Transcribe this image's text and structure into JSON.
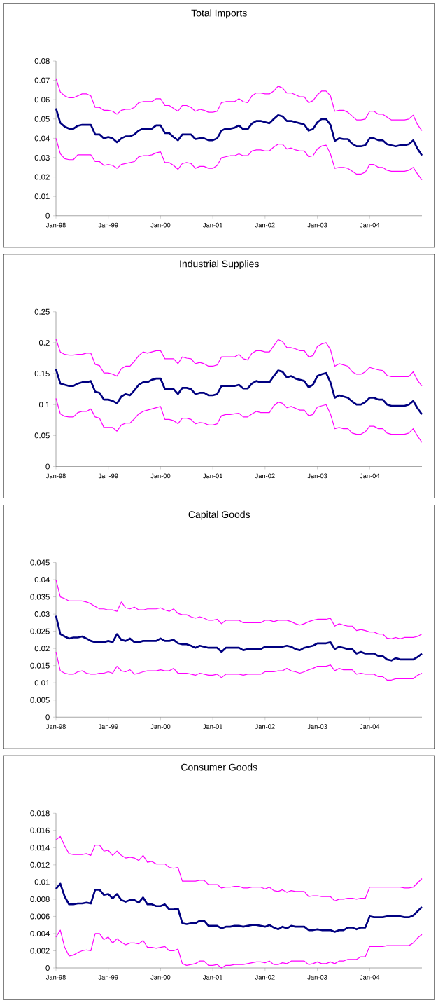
{
  "chart_data": [
    {
      "type": "line",
      "title": "Total Imports",
      "categories": [
        "Jan-98",
        null,
        null,
        null,
        null,
        null,
        null,
        null,
        null,
        null,
        null,
        null,
        "Jan-99",
        null,
        null,
        null,
        null,
        null,
        null,
        null,
        null,
        null,
        null,
        null,
        "Jan-00",
        null,
        null,
        null,
        null,
        null,
        null,
        null,
        null,
        null,
        null,
        null,
        "Jan-01",
        null,
        null,
        null,
        null,
        null,
        null,
        null,
        null,
        null,
        null,
        null,
        "Jan-02",
        null,
        null,
        null,
        null,
        null,
        null,
        null,
        null,
        null,
        null,
        null,
        "Jan-03",
        null,
        null,
        null,
        null,
        null,
        null,
        null,
        null,
        null,
        null,
        null,
        "Jan-04",
        null,
        null,
        null,
        null,
        null,
        null,
        null,
        null,
        null,
        null,
        null,
        null
      ],
      "ylim": [
        0,
        0.08
      ],
      "yticks": [
        0,
        0.01,
        0.02,
        0.03,
        0.04,
        0.05,
        0.06,
        0.07,
        0.08
      ],
      "series": [
        {
          "color": "#000080",
          "values": [
            0.0555,
            0.048,
            0.046,
            0.045,
            0.045,
            0.0465,
            0.047,
            0.047,
            0.047,
            0.042,
            0.042,
            0.04,
            0.0407,
            0.04,
            0.038,
            0.04,
            0.041,
            0.041,
            0.042,
            0.044,
            0.045,
            0.045,
            0.045,
            0.0467,
            0.0467,
            0.0427,
            0.0427,
            0.0406,
            0.039,
            0.042,
            0.042,
            0.042,
            0.0396,
            0.04,
            0.04,
            0.039,
            0.039,
            0.04,
            0.044,
            0.045,
            0.045,
            0.0455,
            0.0467,
            0.0447,
            0.0447,
            0.0477,
            0.049,
            0.049,
            0.0484,
            0.0478,
            0.05,
            0.052,
            0.0514,
            0.049,
            0.049,
            0.0484,
            0.0478,
            0.0471,
            0.044,
            0.0448,
            0.0483,
            0.05,
            0.05,
            0.047,
            0.0387,
            0.04,
            0.0396,
            0.0396,
            0.0372,
            0.0359,
            0.0359,
            0.0364,
            0.04,
            0.04,
            0.039,
            0.039,
            0.037,
            0.0364,
            0.0359,
            0.0364,
            0.0364,
            0.037,
            0.039,
            0.0346,
            0.0312
          ]
        },
        {
          "color": "#ff00ff",
          "values": [
            0.071,
            0.064,
            0.062,
            0.061,
            0.061,
            0.062,
            0.063,
            0.063,
            0.062,
            0.056,
            0.056,
            0.0545,
            0.0545,
            0.054,
            0.0525,
            0.0545,
            0.055,
            0.055,
            0.056,
            0.0585,
            0.059,
            0.059,
            0.059,
            0.0605,
            0.0605,
            0.057,
            0.057,
            0.0555,
            0.054,
            0.057,
            0.057,
            0.056,
            0.054,
            0.055,
            0.0545,
            0.0535,
            0.0535,
            0.054,
            0.0585,
            0.059,
            0.059,
            0.059,
            0.0605,
            0.059,
            0.0585,
            0.062,
            0.0635,
            0.0635,
            0.063,
            0.063,
            0.0645,
            0.067,
            0.066,
            0.0635,
            0.0635,
            0.0625,
            0.0615,
            0.0615,
            0.0585,
            0.0595,
            0.0625,
            0.0645,
            0.0645,
            0.062,
            0.054,
            0.0545,
            0.0545,
            0.0535,
            0.0515,
            0.0495,
            0.0495,
            0.05,
            0.054,
            0.054,
            0.0525,
            0.0525,
            0.051,
            0.0495,
            0.0495,
            0.0495,
            0.0495,
            0.05,
            0.052,
            0.047,
            0.044
          ]
        },
        {
          "color": "#ff00ff",
          "values": [
            0.04,
            0.032,
            0.0295,
            0.029,
            0.029,
            0.0315,
            0.0315,
            0.0315,
            0.0315,
            0.028,
            0.028,
            0.026,
            0.0265,
            0.026,
            0.0245,
            0.0265,
            0.027,
            0.0275,
            0.028,
            0.0305,
            0.031,
            0.031,
            0.0315,
            0.0325,
            0.033,
            0.0275,
            0.0275,
            0.026,
            0.024,
            0.027,
            0.0275,
            0.027,
            0.0245,
            0.0255,
            0.0255,
            0.0245,
            0.0245,
            0.026,
            0.03,
            0.0305,
            0.031,
            0.031,
            0.032,
            0.031,
            0.031,
            0.0335,
            0.034,
            0.034,
            0.0335,
            0.0335,
            0.0355,
            0.037,
            0.037,
            0.0345,
            0.035,
            0.034,
            0.0335,
            0.0335,
            0.0305,
            0.031,
            0.0345,
            0.036,
            0.0365,
            0.032,
            0.0245,
            0.025,
            0.025,
            0.0245,
            0.023,
            0.0215,
            0.0215,
            0.0225,
            0.0265,
            0.0265,
            0.025,
            0.025,
            0.0235,
            0.023,
            0.023,
            0.023,
            0.023,
            0.0235,
            0.025,
            0.0215,
            0.0185
          ]
        }
      ]
    },
    {
      "type": "line",
      "title": "Industrial Supplies",
      "categories": [
        "Jan-98",
        null,
        null,
        null,
        null,
        null,
        null,
        null,
        null,
        null,
        null,
        null,
        "Jan-99",
        null,
        null,
        null,
        null,
        null,
        null,
        null,
        null,
        null,
        null,
        null,
        "Jan-00",
        null,
        null,
        null,
        null,
        null,
        null,
        null,
        null,
        null,
        null,
        null,
        "Jan-01",
        null,
        null,
        null,
        null,
        null,
        null,
        null,
        null,
        null,
        null,
        null,
        "Jan-02",
        null,
        null,
        null,
        null,
        null,
        null,
        null,
        null,
        null,
        null,
        null,
        "Jan-03",
        null,
        null,
        null,
        null,
        null,
        null,
        null,
        null,
        null,
        null,
        null,
        "Jan-04",
        null,
        null,
        null,
        null,
        null,
        null,
        null,
        null,
        null,
        null,
        null,
        null
      ],
      "ylim": [
        0,
        0.25
      ],
      "yticks": [
        0,
        0.05,
        0.1,
        0.15,
        0.2,
        0.25
      ],
      "series": [
        {
          "color": "#000080",
          "values": [
            0.157,
            0.134,
            0.132,
            0.13,
            0.13,
            0.134,
            0.136,
            0.136,
            0.138,
            0.121,
            0.119,
            0.108,
            0.108,
            0.106,
            0.102,
            0.113,
            0.117,
            0.115,
            0.123,
            0.132,
            0.136,
            0.136,
            0.14,
            0.142,
            0.142,
            0.125,
            0.125,
            0.125,
            0.117,
            0.127,
            0.127,
            0.125,
            0.117,
            0.119,
            0.119,
            0.115,
            0.115,
            0.117,
            0.13,
            0.13,
            0.13,
            0.13,
            0.132,
            0.126,
            0.126,
            0.134,
            0.138,
            0.136,
            0.136,
            0.136,
            0.146,
            0.155,
            0.153,
            0.144,
            0.146,
            0.142,
            0.14,
            0.138,
            0.128,
            0.132,
            0.146,
            0.149,
            0.151,
            0.136,
            0.111,
            0.115,
            0.113,
            0.111,
            0.105,
            0.1,
            0.1,
            0.104,
            0.111,
            0.111,
            0.108,
            0.108,
            0.1,
            0.098,
            0.098,
            0.098,
            0.098,
            0.1,
            0.106,
            0.094,
            0.084
          ]
        },
        {
          "color": "#ff00ff",
          "values": [
            0.206,
            0.185,
            0.181,
            0.18,
            0.18,
            0.181,
            0.181,
            0.183,
            0.183,
            0.165,
            0.163,
            0.151,
            0.151,
            0.149,
            0.146,
            0.158,
            0.162,
            0.162,
            0.17,
            0.179,
            0.185,
            0.183,
            0.185,
            0.187,
            0.187,
            0.174,
            0.174,
            0.174,
            0.166,
            0.177,
            0.175,
            0.174,
            0.166,
            0.168,
            0.166,
            0.162,
            0.162,
            0.164,
            0.177,
            0.177,
            0.177,
            0.177,
            0.181,
            0.174,
            0.172,
            0.183,
            0.187,
            0.187,
            0.185,
            0.185,
            0.195,
            0.205,
            0.202,
            0.192,
            0.192,
            0.19,
            0.187,
            0.187,
            0.177,
            0.179,
            0.194,
            0.198,
            0.2,
            0.189,
            0.162,
            0.166,
            0.164,
            0.162,
            0.153,
            0.149,
            0.149,
            0.153,
            0.16,
            0.158,
            0.156,
            0.155,
            0.147,
            0.145,
            0.145,
            0.145,
            0.145,
            0.145,
            0.153,
            0.139,
            0.13
          ]
        },
        {
          "color": "#ff00ff",
          "values": [
            0.11,
            0.085,
            0.081,
            0.08,
            0.08,
            0.087,
            0.089,
            0.089,
            0.093,
            0.08,
            0.078,
            0.063,
            0.063,
            0.063,
            0.057,
            0.067,
            0.07,
            0.07,
            0.077,
            0.085,
            0.089,
            0.091,
            0.093,
            0.095,
            0.097,
            0.076,
            0.076,
            0.074,
            0.069,
            0.078,
            0.078,
            0.076,
            0.069,
            0.071,
            0.07,
            0.067,
            0.067,
            0.069,
            0.082,
            0.084,
            0.084,
            0.085,
            0.086,
            0.08,
            0.08,
            0.085,
            0.089,
            0.087,
            0.087,
            0.087,
            0.098,
            0.104,
            0.102,
            0.095,
            0.097,
            0.094,
            0.091,
            0.091,
            0.082,
            0.084,
            0.096,
            0.098,
            0.1,
            0.085,
            0.061,
            0.063,
            0.061,
            0.061,
            0.054,
            0.052,
            0.052,
            0.056,
            0.065,
            0.065,
            0.061,
            0.061,
            0.054,
            0.052,
            0.052,
            0.052,
            0.052,
            0.054,
            0.061,
            0.049,
            0.039
          ]
        }
      ]
    },
    {
      "type": "line",
      "title": "Capital Goods",
      "categories": [
        "Jan-98",
        null,
        null,
        null,
        null,
        null,
        null,
        null,
        null,
        null,
        null,
        null,
        "Jan-99",
        null,
        null,
        null,
        null,
        null,
        null,
        null,
        null,
        null,
        null,
        null,
        "Jan-00",
        null,
        null,
        null,
        null,
        null,
        null,
        null,
        null,
        null,
        null,
        null,
        "Jan-01",
        null,
        null,
        null,
        null,
        null,
        null,
        null,
        null,
        null,
        null,
        null,
        "Jan-02",
        null,
        null,
        null,
        null,
        null,
        null,
        null,
        null,
        null,
        null,
        null,
        "Jan-03",
        null,
        null,
        null,
        null,
        null,
        null,
        null,
        null,
        null,
        null,
        null,
        "Jan-04",
        null,
        null,
        null,
        null,
        null,
        null,
        null,
        null,
        null,
        null,
        null,
        null
      ],
      "ylim": [
        0,
        0.045
      ],
      "yticks": [
        0,
        0.005,
        0.01,
        0.015,
        0.02,
        0.025,
        0.03,
        0.035,
        0.04,
        0.045
      ],
      "series": [
        {
          "color": "#000080",
          "values": [
            0.0295,
            0.0242,
            0.0235,
            0.0229,
            0.0232,
            0.0232,
            0.0235,
            0.0229,
            0.0222,
            0.0218,
            0.0218,
            0.0218,
            0.0222,
            0.0218,
            0.0242,
            0.0225,
            0.0222,
            0.0229,
            0.0218,
            0.0218,
            0.0222,
            0.0222,
            0.0222,
            0.0222,
            0.0229,
            0.0222,
            0.0222,
            0.0225,
            0.0215,
            0.0212,
            0.0212,
            0.0208,
            0.0202,
            0.0208,
            0.0205,
            0.0202,
            0.0202,
            0.0202,
            0.019,
            0.0202,
            0.0202,
            0.0202,
            0.0202,
            0.0195,
            0.0198,
            0.0198,
            0.0198,
            0.0198,
            0.0205,
            0.0205,
            0.0205,
            0.0205,
            0.0205,
            0.0208,
            0.0205,
            0.0198,
            0.0195,
            0.0202,
            0.0205,
            0.0208,
            0.0215,
            0.0215,
            0.0215,
            0.0218,
            0.0198,
            0.0205,
            0.0202,
            0.0198,
            0.0198,
            0.0185,
            0.019,
            0.0185,
            0.0185,
            0.0185,
            0.0178,
            0.0178,
            0.0168,
            0.0165,
            0.0172,
            0.0168,
            0.0168,
            0.0168,
            0.0168,
            0.0175,
            0.0185
          ]
        },
        {
          "color": "#ff00ff",
          "values": [
            0.04,
            0.035,
            0.0345,
            0.0338,
            0.0338,
            0.0338,
            0.0338,
            0.0335,
            0.033,
            0.0322,
            0.0315,
            0.0315,
            0.0312,
            0.0312,
            0.0308,
            0.0335,
            0.0318,
            0.0315,
            0.032,
            0.0312,
            0.0312,
            0.0315,
            0.0315,
            0.0315,
            0.0318,
            0.0312,
            0.0308,
            0.0315,
            0.0302,
            0.0298,
            0.0298,
            0.0292,
            0.0288,
            0.0292,
            0.0288,
            0.0282,
            0.0282,
            0.0285,
            0.0272,
            0.0282,
            0.0282,
            0.0282,
            0.0282,
            0.0275,
            0.0275,
            0.0275,
            0.0275,
            0.0275,
            0.0282,
            0.0282,
            0.0278,
            0.0282,
            0.0282,
            0.0282,
            0.0278,
            0.0272,
            0.0268,
            0.0272,
            0.0278,
            0.0282,
            0.0285,
            0.0285,
            0.0285,
            0.0288,
            0.0265,
            0.0272,
            0.0268,
            0.0265,
            0.0265,
            0.0252,
            0.0255,
            0.0252,
            0.0248,
            0.0248,
            0.0242,
            0.0242,
            0.023,
            0.0228,
            0.0232,
            0.0228,
            0.0232,
            0.0232,
            0.0232,
            0.0235,
            0.0242
          ]
        },
        {
          "color": "#ff00ff",
          "values": [
            0.019,
            0.0135,
            0.0128,
            0.0125,
            0.0125,
            0.0132,
            0.0135,
            0.0128,
            0.0125,
            0.0125,
            0.0128,
            0.0128,
            0.0132,
            0.0128,
            0.0148,
            0.0135,
            0.0132,
            0.0138,
            0.0125,
            0.0128,
            0.0132,
            0.0135,
            0.0135,
            0.0135,
            0.0138,
            0.0135,
            0.0135,
            0.0142,
            0.0128,
            0.0128,
            0.0128,
            0.0125,
            0.0122,
            0.0128,
            0.0125,
            0.0122,
            0.0122,
            0.0125,
            0.0115,
            0.0125,
            0.0125,
            0.0125,
            0.0125,
            0.0122,
            0.0125,
            0.0125,
            0.0125,
            0.0125,
            0.0132,
            0.0132,
            0.0132,
            0.0135,
            0.0135,
            0.0142,
            0.0135,
            0.0132,
            0.0128,
            0.0132,
            0.0138,
            0.0142,
            0.0148,
            0.0148,
            0.0148,
            0.0152,
            0.0135,
            0.0142,
            0.0138,
            0.0138,
            0.0138,
            0.0125,
            0.0128,
            0.0125,
            0.0125,
            0.0125,
            0.0118,
            0.0118,
            0.0108,
            0.0108,
            0.0112,
            0.0112,
            0.0112,
            0.0112,
            0.0112,
            0.0122,
            0.0128
          ]
        }
      ]
    },
    {
      "type": "line",
      "title": "Consumer Goods",
      "categories": [
        "Jan-98",
        null,
        null,
        null,
        null,
        null,
        null,
        null,
        null,
        null,
        null,
        null,
        "Jan-99",
        null,
        null,
        null,
        null,
        null,
        null,
        null,
        null,
        null,
        null,
        null,
        "Jan-00",
        null,
        null,
        null,
        null,
        null,
        null,
        null,
        null,
        null,
        null,
        null,
        "Jan-01",
        null,
        null,
        null,
        null,
        null,
        null,
        null,
        null,
        null,
        null,
        null,
        "Jan-02",
        null,
        null,
        null,
        null,
        null,
        null,
        null,
        null,
        null,
        null,
        null,
        "Jan-03",
        null,
        null,
        null,
        null,
        null,
        null,
        null,
        null,
        null,
        null,
        null,
        "Jan-04",
        null,
        null,
        null,
        null,
        null,
        null,
        null,
        null,
        null,
        null,
        null,
        null
      ],
      "ylim": [
        0,
        0.018
      ],
      "yticks": [
        0,
        0.002,
        0.004,
        0.006,
        0.008,
        0.01,
        0.012,
        0.014,
        0.016,
        0.018
      ],
      "series": [
        {
          "color": "#000080",
          "values": [
            0.0092,
            0.0098,
            0.0083,
            0.0074,
            0.0074,
            0.0075,
            0.0075,
            0.0076,
            0.0075,
            0.0091,
            0.0091,
            0.0085,
            0.0086,
            0.0081,
            0.0086,
            0.0079,
            0.0077,
            0.0079,
            0.0079,
            0.0076,
            0.0082,
            0.0074,
            0.0074,
            0.0072,
            0.0072,
            0.0074,
            0.0068,
            0.0068,
            0.0069,
            0.0052,
            0.0051,
            0.0052,
            0.0052,
            0.0055,
            0.0055,
            0.0049,
            0.0049,
            0.0049,
            0.0046,
            0.0048,
            0.0048,
            0.0049,
            0.0049,
            0.0048,
            0.0049,
            0.005,
            0.005,
            0.0049,
            0.0048,
            0.005,
            0.0047,
            0.0045,
            0.0048,
            0.0046,
            0.0049,
            0.0048,
            0.0048,
            0.0048,
            0.0044,
            0.0044,
            0.0045,
            0.0044,
            0.0044,
            0.0044,
            0.0042,
            0.0044,
            0.0044,
            0.0047,
            0.0047,
            0.0045,
            0.0047,
            0.0047,
            0.006,
            0.0059,
            0.0059,
            0.0059,
            0.006,
            0.006,
            0.006,
            0.006,
            0.0059,
            0.0059,
            0.0061,
            0.0066,
            0.0071
          ]
        },
        {
          "color": "#ff00ff",
          "values": [
            0.0149,
            0.0153,
            0.0142,
            0.0133,
            0.0132,
            0.0132,
            0.0132,
            0.0133,
            0.0131,
            0.0143,
            0.0143,
            0.0136,
            0.0137,
            0.0131,
            0.0136,
            0.0131,
            0.0128,
            0.0129,
            0.0128,
            0.0125,
            0.0131,
            0.0123,
            0.0124,
            0.0121,
            0.0121,
            0.0121,
            0.0117,
            0.0116,
            0.0117,
            0.0101,
            0.0101,
            0.0101,
            0.0101,
            0.0102,
            0.0102,
            0.0097,
            0.0097,
            0.0097,
            0.0093,
            0.0094,
            0.0094,
            0.0095,
            0.0095,
            0.0093,
            0.0093,
            0.0094,
            0.0094,
            0.0094,
            0.0092,
            0.0094,
            0.009,
            0.0089,
            0.0091,
            0.0088,
            0.009,
            0.0089,
            0.0089,
            0.0089,
            0.0083,
            0.0084,
            0.0084,
            0.0083,
            0.0083,
            0.0083,
            0.0078,
            0.008,
            0.008,
            0.0081,
            0.0081,
            0.008,
            0.0081,
            0.0081,
            0.0094,
            0.0094,
            0.0094,
            0.0094,
            0.0094,
            0.0094,
            0.0094,
            0.0094,
            0.0093,
            0.0093,
            0.0094,
            0.0099,
            0.0104
          ]
        },
        {
          "color": "#ff00ff",
          "values": [
            0.0036,
            0.0044,
            0.0024,
            0.0014,
            0.0015,
            0.0018,
            0.002,
            0.0021,
            0.002,
            0.004,
            0.004,
            0.0033,
            0.0036,
            0.0029,
            0.0034,
            0.003,
            0.0027,
            0.0029,
            0.0029,
            0.0028,
            0.0032,
            0.0024,
            0.0024,
            0.0023,
            0.0024,
            0.0025,
            0.002,
            0.002,
            0.0022,
            0.0005,
            0.0003,
            0.0004,
            0.0005,
            0.0008,
            0.0008,
            0.0003,
            0.0003,
            0.0004,
            0.0,
            0.0003,
            0.0003,
            0.0004,
            0.0004,
            0.0004,
            0.0005,
            0.0006,
            0.0007,
            0.0007,
            0.0006,
            0.0008,
            0.0004,
            0.0004,
            0.0006,
            0.0005,
            0.0008,
            0.0008,
            0.0008,
            0.0008,
            0.0004,
            0.0005,
            0.0007,
            0.0005,
            0.0005,
            0.0007,
            0.0005,
            0.0008,
            0.0008,
            0.001,
            0.001,
            0.001,
            0.0013,
            0.0013,
            0.0025,
            0.0025,
            0.0025,
            0.0025,
            0.0026,
            0.0026,
            0.0026,
            0.0026,
            0.0026,
            0.0026,
            0.0029,
            0.0035,
            0.0039
          ]
        }
      ]
    }
  ]
}
